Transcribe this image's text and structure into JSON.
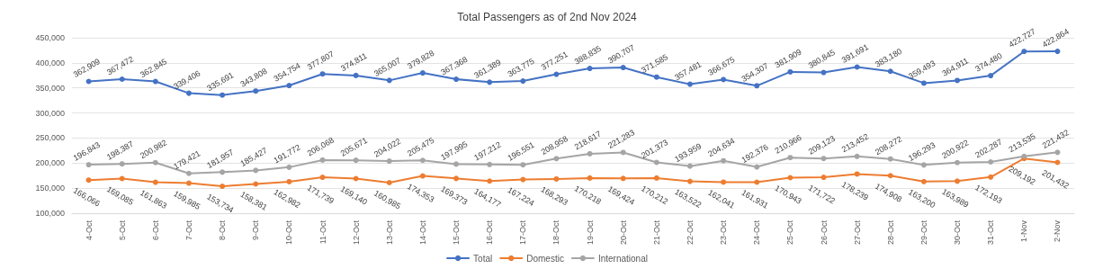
{
  "chart_data": {
    "type": "line",
    "title": "Total Passengers as of 2nd Nov 2024",
    "categories": [
      "4-Oct",
      "5-Oct",
      "6-Oct",
      "7-Oct",
      "8-Oct",
      "9-Oct",
      "10-Oct",
      "11-Oct",
      "12-Oct",
      "13-Oct",
      "14-Oct",
      "15-Oct",
      "16-Oct",
      "17-Oct",
      "18-Oct",
      "19-Oct",
      "20-Oct",
      "21-Oct",
      "22-Oct",
      "23-Oct",
      "24-Oct",
      "25-Oct",
      "26-Oct",
      "27-Oct",
      "28-Oct",
      "29-Oct",
      "30-Oct",
      "31-Oct",
      "1-Nov",
      "2-Nov"
    ],
    "series": [
      {
        "name": "Total",
        "color": "#4472c4",
        "values": [
          362909,
          367472,
          362845,
          339406,
          335691,
          343808,
          354754,
          377807,
          374811,
          365007,
          379828,
          367368,
          361389,
          363775,
          377251,
          388835,
          390707,
          371585,
          357481,
          366675,
          354307,
          381909,
          380845,
          391691,
          383180,
          359493,
          364911,
          374480,
          422727,
          422864
        ],
        "value_labels": [
          "362,909",
          "367,472",
          "362,845",
          "339,406",
          "335,691",
          "343,808",
          "354,754",
          "377,807",
          "374,811",
          "365,007",
          "379,828",
          "367,368",
          "361,389",
          "363,775",
          "377,251",
          "388,835",
          "390,707",
          "371,585",
          "357,481",
          "366,675",
          "354,307",
          "381,909",
          "380,845",
          "391,691",
          "383,180",
          "359,493",
          "364,911",
          "374,480",
          "422,727",
          "422,864"
        ]
      },
      {
        "name": "Domestic",
        "color": "#ed7d31",
        "values": [
          166066,
          169085,
          161863,
          159985,
          153734,
          158381,
          162982,
          171739,
          169140,
          160985,
          174353,
          169373,
          164177,
          167224,
          168293,
          170218,
          169424,
          170212,
          163522,
          162041,
          161931,
          170943,
          171722,
          178239,
          174908,
          163200,
          163989,
          172193,
          209192,
          201432
        ],
        "value_labels": [
          "166,066",
          "169,085",
          "161,863",
          "159,985",
          "153,734",
          "158,381",
          "162,982",
          "171,739",
          "169,140",
          "160,985",
          "174,353",
          "169,373",
          "164,177",
          "167,224",
          "168,293",
          "170,218",
          "169,424",
          "170,212",
          "163,522",
          "162,041",
          "161,931",
          "170,943",
          "171,722",
          "178,239",
          "174,908",
          "163,200",
          "163,989",
          "172,193",
          "209,192",
          "201,432"
        ]
      },
      {
        "name": "International",
        "color": "#a5a5a5",
        "values": [
          196843,
          198387,
          200982,
          179421,
          181957,
          185427,
          191772,
          206068,
          205671,
          204022,
          205475,
          197995,
          197212,
          196551,
          208958,
          218617,
          221283,
          201373,
          193959,
          204634,
          192376,
          210966,
          209123,
          213452,
          208272,
          196293,
          200922,
          202287,
          213535,
          221432
        ],
        "value_labels": [
          "196,843",
          "198,387",
          "200,982",
          "179,421",
          "181,957",
          "185,427",
          "191,772",
          "206,068",
          "205,671",
          "204,022",
          "205,475",
          "197,995",
          "197,212",
          "196,551",
          "208,958",
          "218,617",
          "221,283",
          "201,373",
          "193,959",
          "204,634",
          "192,376",
          "210,966",
          "209,123",
          "213,452",
          "208,272",
          "196,293",
          "200,922",
          "202,287",
          "213,535",
          "221,432"
        ]
      }
    ],
    "ylim": [
      100000,
      450000
    ],
    "yticks": [
      {
        "value": 100000,
        "label": "100,000"
      },
      {
        "value": 150000,
        "label": "150,000"
      },
      {
        "value": 200000,
        "label": "200,000"
      },
      {
        "value": 250000,
        "label": "250,000"
      },
      {
        "value": 300000,
        "label": "300,000"
      },
      {
        "value": 350000,
        "label": "350,000"
      },
      {
        "value": 400000,
        "label": "400,000"
      },
      {
        "value": 450000,
        "label": "450,000"
      }
    ],
    "grid": "y",
    "legend": "bottom",
    "marker": "circle",
    "line_style": "solid"
  }
}
